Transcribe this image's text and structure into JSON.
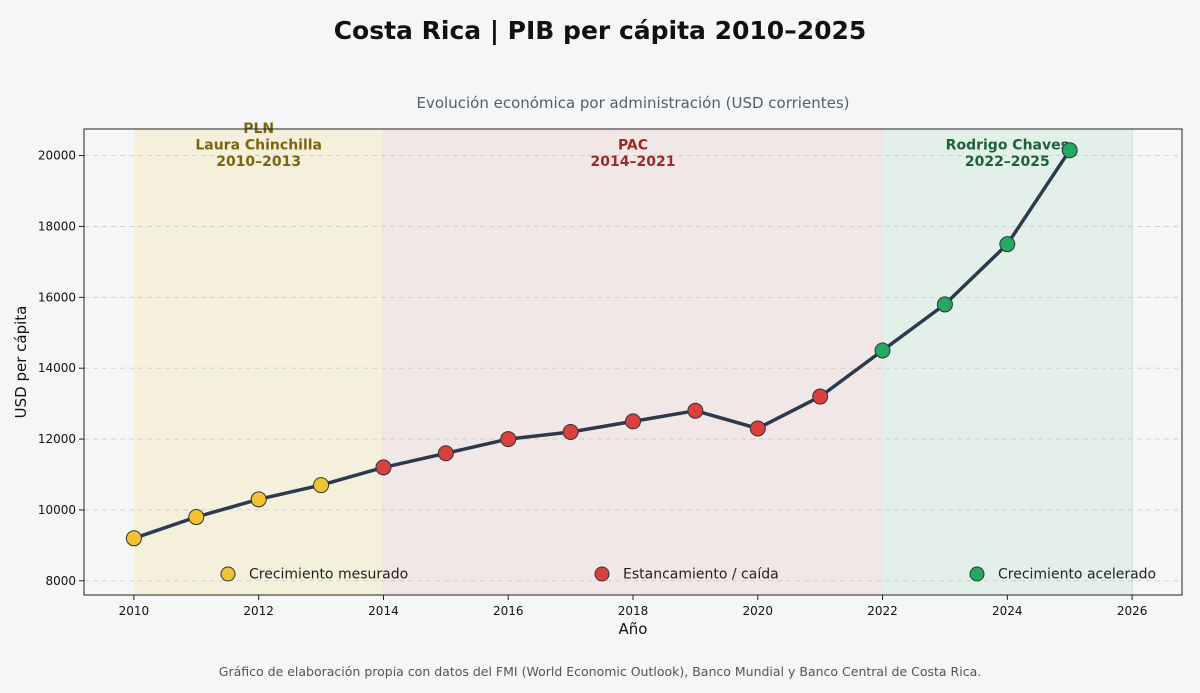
{
  "title": "Costa Rica | PIB per cápita 2010–2025",
  "subtitle": "Evolución económica por administración (USD corrientes)",
  "footnote": "Gráfico de elaboración propia con datos del FMI (World Economic Outlook), Banco Mundial y Banco Central de Costa Rica.",
  "chart_data": {
    "type": "line",
    "xlabel": "Año",
    "ylabel": "USD per cápita",
    "xlim": [
      2009.2,
      2026.8
    ],
    "ylim": [
      7600,
      20750
    ],
    "x_ticks": [
      2010,
      2012,
      2014,
      2016,
      2018,
      2020,
      2022,
      2024,
      2026
    ],
    "y_ticks": [
      8000,
      10000,
      12000,
      14000,
      16000,
      18000,
      20000
    ],
    "grid": "horizontal dashed",
    "line_color": "#2b3a4d",
    "x": [
      2010,
      2011,
      2012,
      2013,
      2014,
      2015,
      2016,
      2017,
      2018,
      2019,
      2020,
      2021,
      2022,
      2023,
      2024,
      2025
    ],
    "y": [
      9200,
      9800,
      10300,
      10700,
      11200,
      11600,
      12000,
      12200,
      12500,
      12800,
      12300,
      13200,
      14500,
      15800,
      17500,
      20150
    ],
    "point_category": [
      "mesurado",
      "mesurado",
      "mesurado",
      "mesurado",
      "estancamiento",
      "estancamiento",
      "estancamiento",
      "estancamiento",
      "estancamiento",
      "estancamiento",
      "estancamiento",
      "estancamiento",
      "acelerado",
      "acelerado",
      "acelerado",
      "acelerado"
    ],
    "categories": {
      "mesurado": {
        "label": "Crecimiento mesurado",
        "color": "#f2c232"
      },
      "estancamiento": {
        "label": "Estancamiento / caída",
        "color": "#d9413f"
      },
      "acelerado": {
        "label": "Crecimiento acelerado",
        "color": "#25a85f"
      }
    },
    "legend_order": [
      "mesurado",
      "estancamiento",
      "acelerado"
    ],
    "legend": "bottom, single row",
    "periods": [
      {
        "start": 2010,
        "end": 2014,
        "lines": [
          "PLN",
          "Laura Chinchilla",
          "2010–2013"
        ],
        "fill": "#f5f0dc",
        "text_color": "#7d6510"
      },
      {
        "start": 2014,
        "end": 2022,
        "lines": [
          "PAC",
          "2014–2021"
        ],
        "fill": "#f2e7e7",
        "text_color": "#9c2a2a"
      },
      {
        "start": 2022,
        "end": 2026,
        "lines": [
          "Rodrigo Chaves",
          "2022–2025"
        ],
        "fill": "#e3f0ea",
        "text_color": "#1e6238"
      }
    ]
  }
}
